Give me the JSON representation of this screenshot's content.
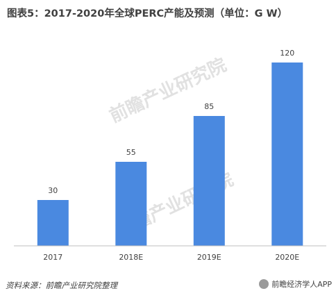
{
  "title": "图表5：2017-2020年全球PERC产能及预测（单位：G W）",
  "source_text": "资料来源：前瞻产业研究院整理",
  "brand_text": "前瞻经济学人APP",
  "watermark_text": "前瞻产业研究院",
  "colors": {
    "bar": "#4A89E0",
    "axis": "#bfbfbf",
    "text": "#404040"
  },
  "chart_data": {
    "type": "bar",
    "categories": [
      "2017",
      "2018E",
      "2019E",
      "2020E"
    ],
    "values": [
      30,
      55,
      85,
      120
    ],
    "title": "图表5：2017-2020年全球PERC产能及预测（单位：G W）",
    "xlabel": "",
    "ylabel": "",
    "ylim": [
      0,
      120
    ],
    "grid": false,
    "legend": "none"
  }
}
